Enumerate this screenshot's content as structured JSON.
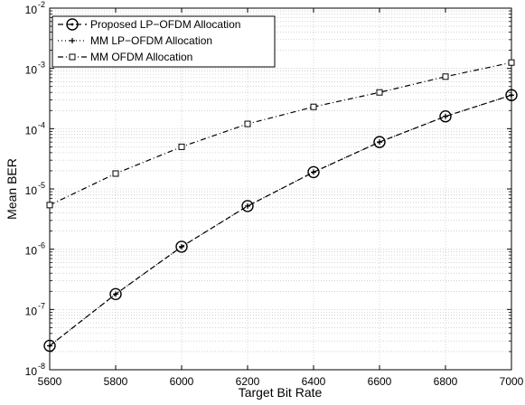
{
  "chart_data": {
    "type": "line",
    "title": "",
    "xlabel": "Target Bit Rate",
    "ylabel": "Mean BER",
    "xlim": [
      5600,
      7000
    ],
    "ylim_log10": [
      -8,
      -2
    ],
    "yscale": "log",
    "grid": true,
    "legend_position": "top-left",
    "x": [
      5600,
      5800,
      6000,
      6200,
      6400,
      6600,
      6800,
      7000
    ],
    "x_tick_labels": [
      "5600",
      "5800",
      "6000",
      "6200",
      "6400",
      "6600",
      "6800",
      "7000"
    ],
    "y_tick_labels": [
      {
        "base": "10",
        "exp": "-8"
      },
      {
        "base": "10",
        "exp": "-7"
      },
      {
        "base": "10",
        "exp": "-6"
      },
      {
        "base": "10",
        "exp": "-5"
      },
      {
        "base": "10",
        "exp": "-4"
      },
      {
        "base": "10",
        "exp": "-3"
      },
      {
        "base": "10",
        "exp": "-2"
      }
    ],
    "series": [
      {
        "name": "Proposed LP−OFDM Allocation",
        "line_style": "dashed",
        "marker": "circle-dot",
        "values": [
          2.5e-08,
          1.8e-07,
          1.1e-06,
          5.2e-06,
          1.9e-05,
          6e-05,
          0.00016,
          0.00036
        ]
      },
      {
        "name": "MM LP−OFDM Allocation",
        "line_style": "dotted",
        "marker": "plus",
        "values": [
          2.5e-08,
          1.8e-07,
          1.1e-06,
          5.2e-06,
          1.9e-05,
          6e-05,
          0.00016,
          0.00036
        ]
      },
      {
        "name": "MM OFDM Allocation",
        "line_style": "dashdot",
        "marker": "square",
        "values": [
          5.4e-06,
          1.8e-05,
          5e-05,
          0.00012,
          0.00023,
          0.0004,
          0.00073,
          0.00125
        ]
      }
    ]
  }
}
